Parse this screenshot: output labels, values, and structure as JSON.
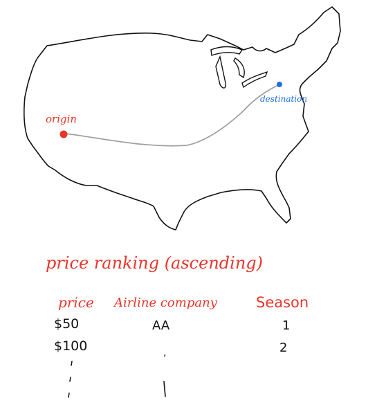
{
  "map": {
    "origin_label": "origin",
    "destination_label": "destination",
    "origin_color": "#e8352a",
    "destination_color": "#1f6fe0",
    "route_color": "#a0a0a0"
  },
  "ranking": {
    "title": "price ranking (ascending)",
    "headers": {
      "price": "price",
      "airline": "Airline company",
      "season": "Season"
    },
    "rows": [
      {
        "price": "$50",
        "airline": "AA",
        "season": "1"
      },
      {
        "price": "$100",
        "airline": ",",
        "season": "2"
      }
    ]
  }
}
